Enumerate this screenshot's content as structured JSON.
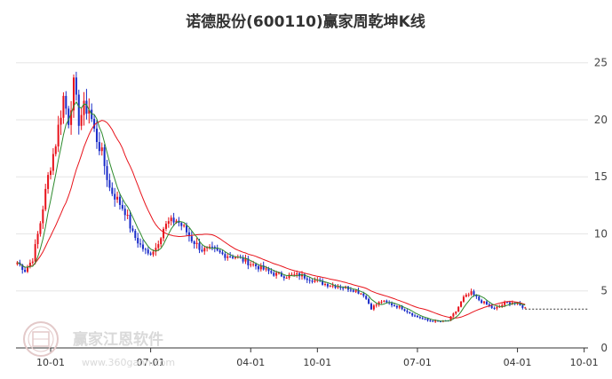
{
  "chart_data": {
    "type": "candlestick",
    "title": "诺德股份(600110)赢家周乾坤K线",
    "xlabel": "",
    "ylabel": "",
    "ylim": [
      0,
      27
    ],
    "y_ticks": [
      0,
      5,
      10,
      15,
      20,
      25
    ],
    "x_tick_labels": [
      "10-01",
      "07-01",
      "04-01",
      "10-01",
      "07-01",
      "04-01",
      "10-01"
    ],
    "grid": true,
    "legend": "none",
    "x_tick_weeks": [
      13,
      52,
      91,
      117,
      156,
      195,
      221
    ],
    "total_weeks": 223,
    "last_candle_week": 198,
    "reference_level": 3.4,
    "key_points": [
      [
        0,
        7.5
      ],
      [
        3,
        6.8
      ],
      [
        6,
        7.8
      ],
      [
        9,
        11
      ],
      [
        12,
        15
      ],
      [
        15,
        18
      ],
      [
        18,
        22
      ],
      [
        20,
        20
      ],
      [
        22,
        23
      ],
      [
        24,
        20
      ],
      [
        26,
        21
      ],
      [
        28,
        21
      ],
      [
        30,
        19
      ],
      [
        33,
        17
      ],
      [
        36,
        14
      ],
      [
        39,
        13
      ],
      [
        42,
        12
      ],
      [
        45,
        10
      ],
      [
        48,
        9
      ],
      [
        51,
        8.2
      ],
      [
        54,
        8.8
      ],
      [
        57,
        10.5
      ],
      [
        59,
        11
      ],
      [
        62,
        11.2
      ],
      [
        65,
        10.5
      ],
      [
        68,
        9.5
      ],
      [
        72,
        8.6
      ],
      [
        76,
        8.6
      ],
      [
        80,
        8.2
      ],
      [
        85,
        8
      ],
      [
        90,
        7.5
      ],
      [
        95,
        7
      ],
      [
        100,
        6.5
      ],
      [
        105,
        6.3
      ],
      [
        110,
        6.4
      ],
      [
        115,
        6
      ],
      [
        120,
        5.6
      ],
      [
        125,
        5.4
      ],
      [
        130,
        5.2
      ],
      [
        135,
        4.7
      ],
      [
        138,
        3.5
      ],
      [
        142,
        4.1
      ],
      [
        146,
        3.8
      ],
      [
        150,
        3.5
      ],
      [
        155,
        2.8
      ],
      [
        160,
        2.4
      ],
      [
        165,
        2.3
      ],
      [
        168,
        2.4
      ],
      [
        171,
        3.2
      ],
      [
        174,
        4.4
      ],
      [
        177,
        4.8
      ],
      [
        180,
        4.2
      ],
      [
        183,
        3.8
      ],
      [
        186,
        3.4
      ],
      [
        190,
        3.9
      ],
      [
        193,
        4
      ],
      [
        196,
        3.7
      ],
      [
        198,
        3.5
      ]
    ],
    "series": [
      {
        "type": "candlestick",
        "up_color": "#e8131b",
        "down_color": "#1a2cc9"
      },
      {
        "type": "line",
        "color": "#2e8b2e",
        "period": 6
      },
      {
        "type": "line",
        "color": "#e8131b",
        "period": 20
      }
    ]
  },
  "watermark": {
    "brand": "赢家江恩软件",
    "url": "www.360gann.com"
  }
}
